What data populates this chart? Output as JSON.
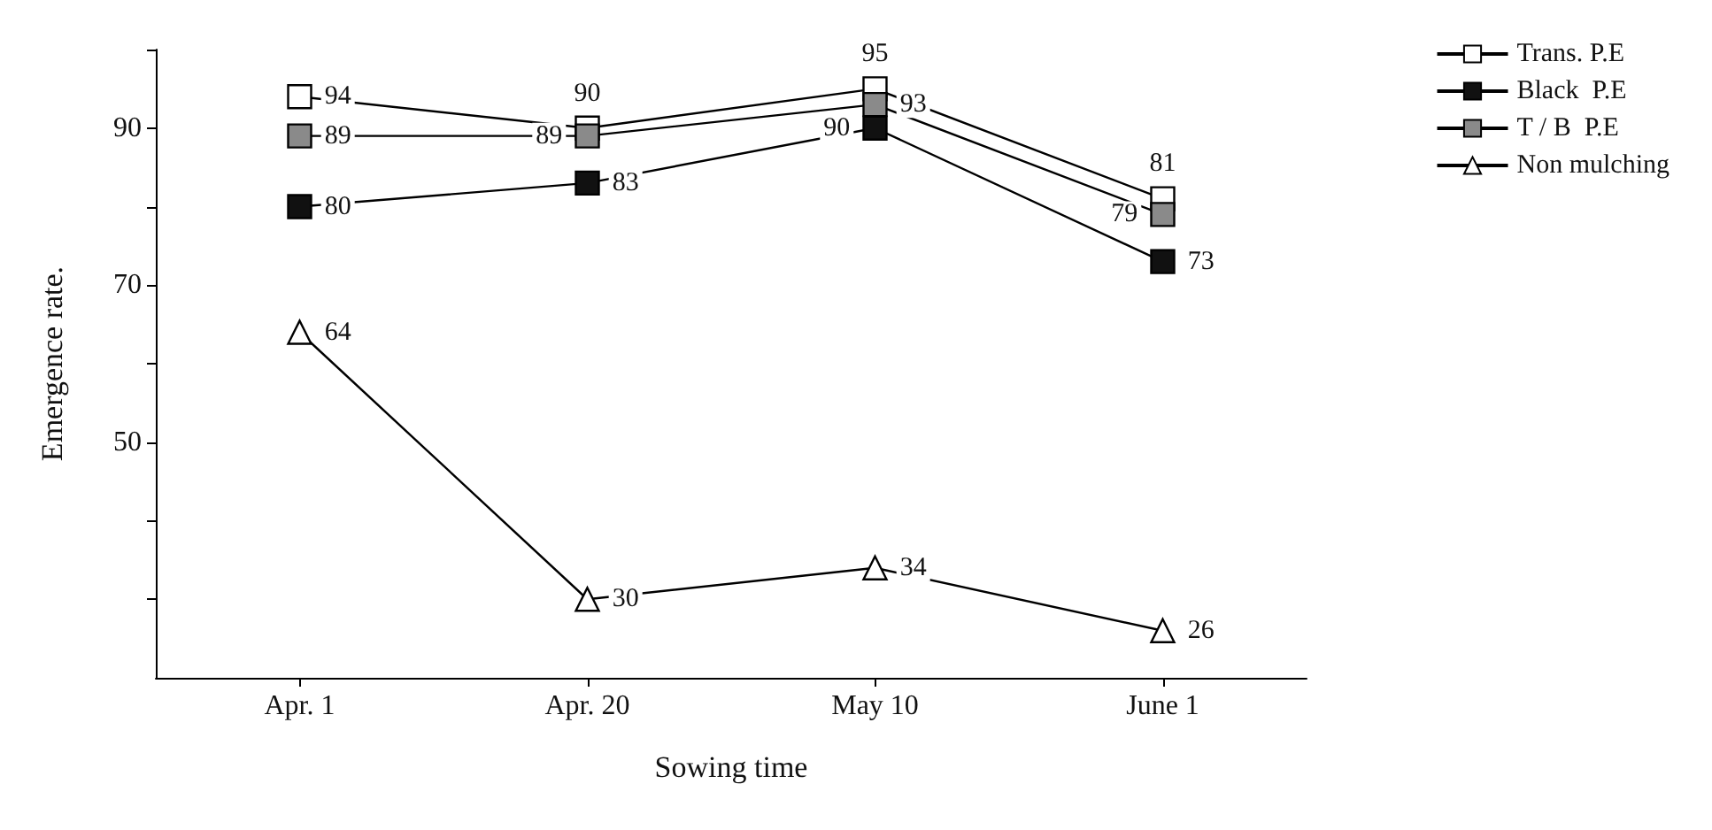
{
  "chart_data": {
    "type": "line",
    "xlabel": "Sowing time",
    "ylabel": "Emergence rate.",
    "categories": [
      "Apr. 1",
      "Apr. 20",
      "May 10",
      "June 1"
    ],
    "series": [
      {
        "name": "Trans. P.E",
        "color": "#ffffff",
        "marker": "square",
        "values": [
          94,
          90,
          95,
          81
        ]
      },
      {
        "name": "Black  P.E",
        "color": "#111111",
        "marker": "square",
        "values": [
          80,
          83,
          90,
          73
        ]
      },
      {
        "name": "T / B  P.E",
        "color": "#8a8a8a",
        "marker": "square",
        "values": [
          89,
          89,
          93,
          79
        ]
      },
      {
        "name": "Non mulching",
        "color": "#ffffff",
        "marker": "triangle",
        "values": [
          64,
          30,
          34,
          26
        ]
      }
    ],
    "ylim": [
      20,
      100
    ],
    "yticks": [
      {
        "value": 30,
        "label": null
      },
      {
        "value": 40,
        "label": null
      },
      50,
      {
        "value": 60,
        "label": null
      },
      70,
      {
        "value": 80,
        "label": null
      },
      90,
      {
        "value": 100,
        "label": null
      }
    ],
    "data_labels": true,
    "legend": "top right",
    "grid": false,
    "line_style": "solid"
  }
}
